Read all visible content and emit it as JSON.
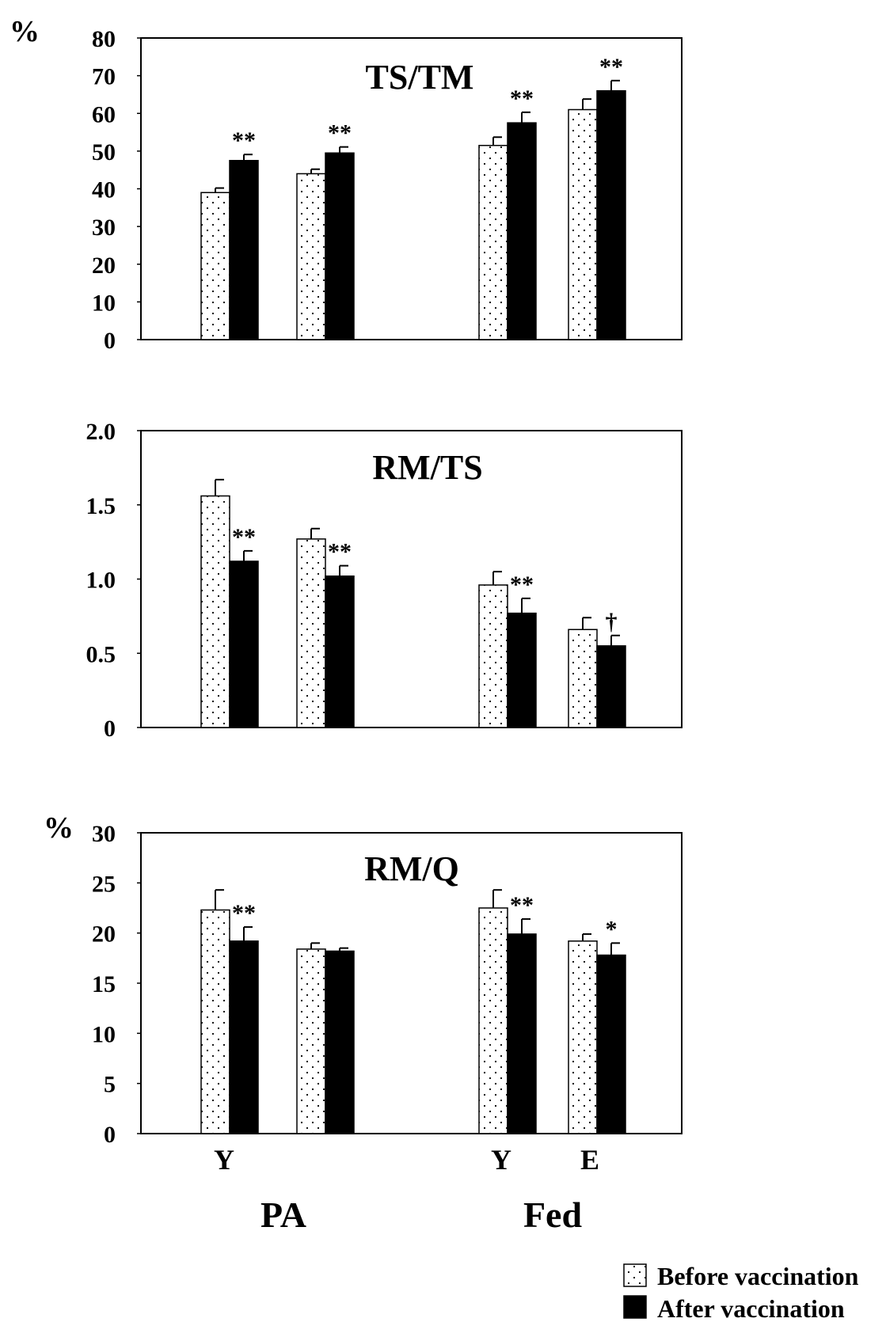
{
  "chart_data": [
    {
      "type": "bar",
      "title": "TS/TM",
      "unit_label": "%",
      "ylim": [
        0,
        80
      ],
      "yticks": [
        "0",
        "10",
        "20",
        "30",
        "40",
        "50",
        "60",
        "70",
        "80"
      ],
      "series": [
        {
          "name": "Before vaccination",
          "values": [
            39,
            44,
            51.5,
            61
          ],
          "errors": [
            1.2,
            1.2,
            2.2,
            2.8
          ]
        },
        {
          "name": "After vaccination",
          "values": [
            47.5,
            49.5,
            57.5,
            66
          ],
          "errors": [
            1.6,
            1.6,
            2.8,
            2.7
          ]
        }
      ],
      "significance": [
        "**",
        "**",
        "**",
        "**"
      ]
    },
    {
      "type": "bar",
      "title": "RM/TS",
      "unit_label": "",
      "ylim": [
        0,
        2.0
      ],
      "yticks": [
        "0",
        "0.5",
        "1.0",
        "1.5",
        "2.0"
      ],
      "series": [
        {
          "name": "Before vaccination",
          "values": [
            1.56,
            1.27,
            0.96,
            0.66
          ],
          "errors": [
            0.11,
            0.07,
            0.09,
            0.08
          ]
        },
        {
          "name": "After vaccination",
          "values": [
            1.12,
            1.02,
            0.77,
            0.55
          ],
          "errors": [
            0.07,
            0.07,
            0.1,
            0.07
          ]
        }
      ],
      "significance": [
        "**",
        "**",
        "**",
        "†"
      ]
    },
    {
      "type": "bar",
      "title": "RM/Q",
      "unit_label": "%",
      "ylim": [
        0,
        30
      ],
      "yticks": [
        "0",
        "5",
        "10",
        "15",
        "20",
        "25",
        "30"
      ],
      "series": [
        {
          "name": "Before vaccination",
          "values": [
            22.3,
            18.4,
            22.5,
            19.2
          ],
          "errors": [
            2.0,
            0.6,
            1.8,
            0.7
          ]
        },
        {
          "name": "After vaccination",
          "values": [
            19.2,
            18.2,
            19.9,
            17.8
          ],
          "errors": [
            1.4,
            0.3,
            1.5,
            1.2
          ]
        }
      ],
      "significance": [
        "**",
        "",
        "**",
        "*"
      ]
    }
  ],
  "x_labels": [
    "Y",
    "",
    "Y",
    "E"
  ],
  "group_labels": [
    "PA",
    "Fed"
  ],
  "legend": {
    "before": "Before vaccination",
    "after": "After vaccination"
  }
}
